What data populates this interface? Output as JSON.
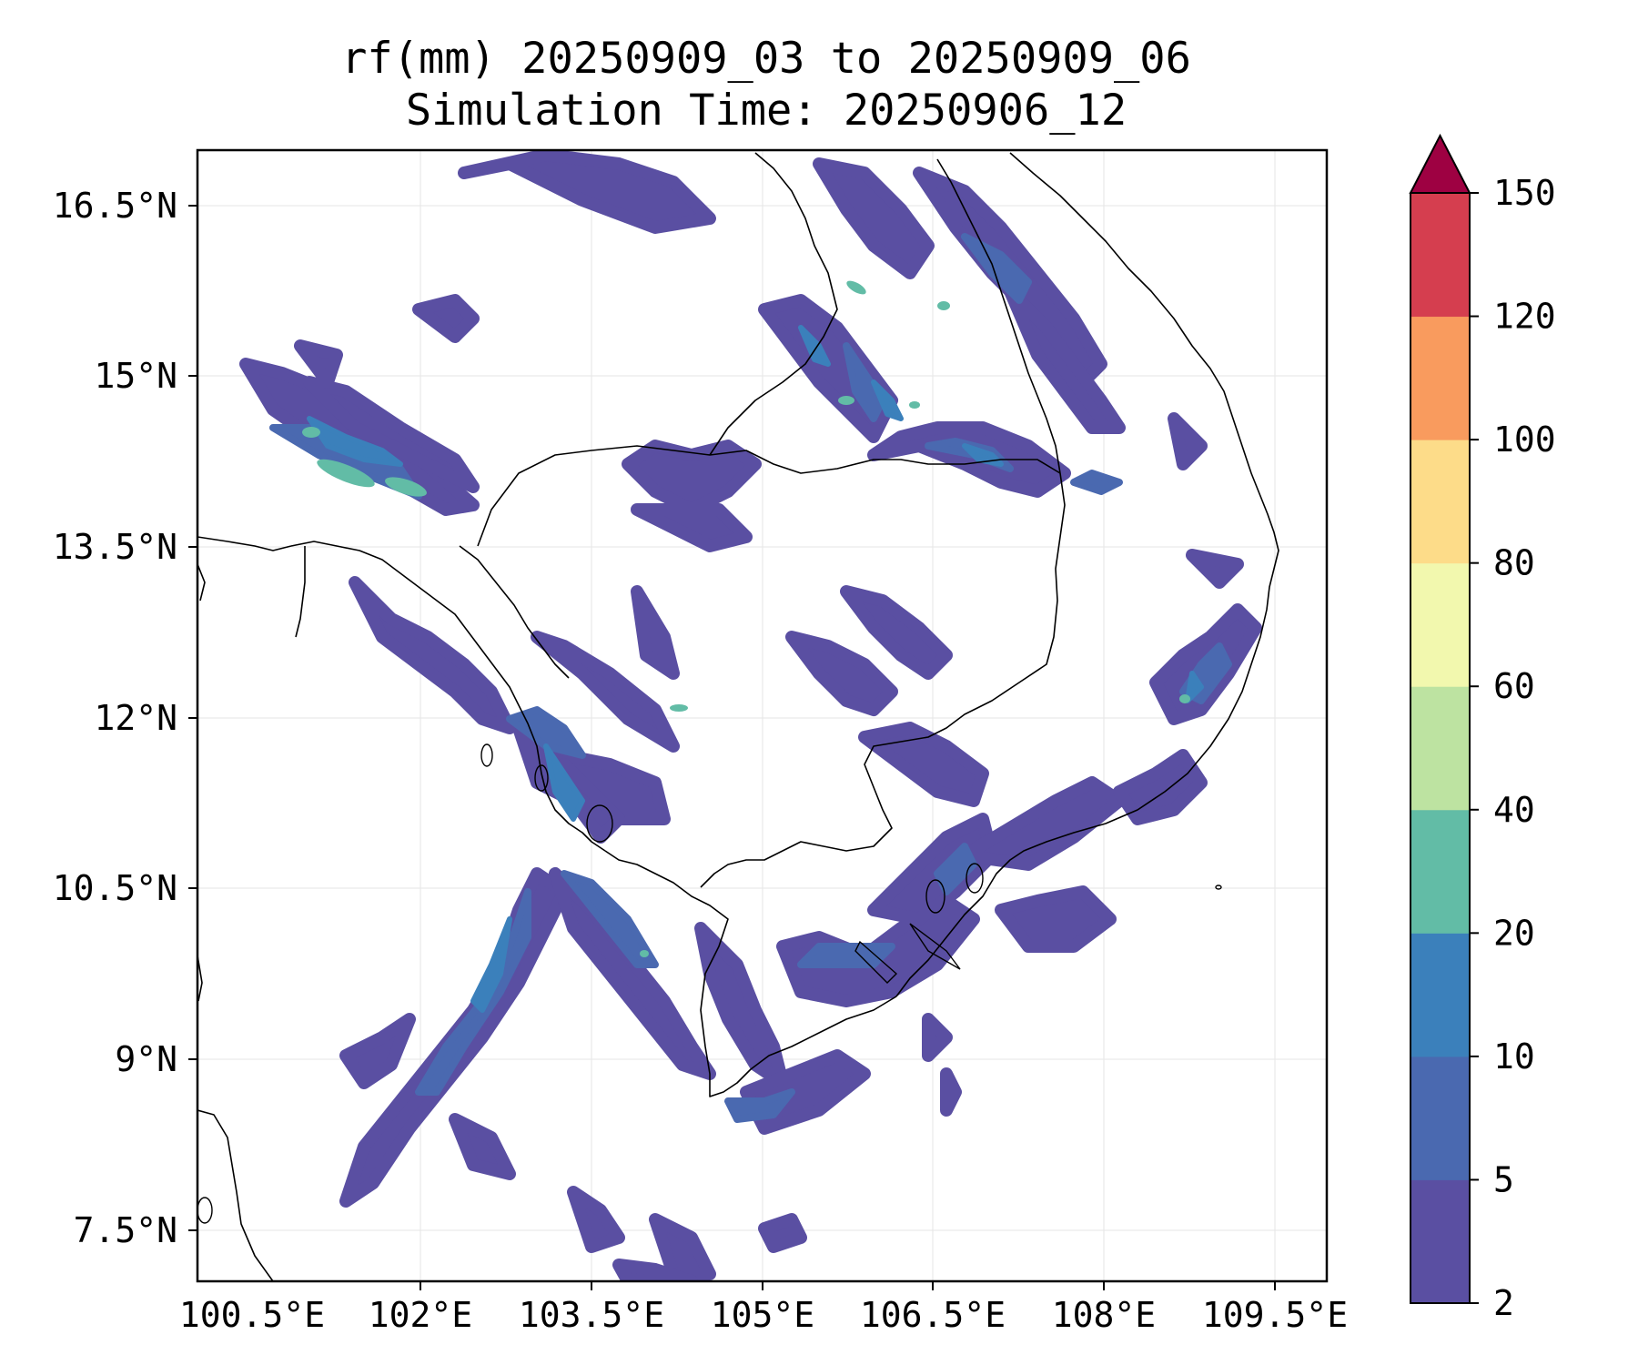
{
  "map": {
    "title_line1": "rf(mm) 20250909_03 to 20250909_06",
    "title_line2": "Simulation Time: 20250906_12",
    "lat_ticks": [
      "16.5°N",
      "15°N",
      "13.5°N",
      "12°N",
      "10.5°N",
      "9°N",
      "7.5°N"
    ],
    "lon_ticks": [
      "100.5°E",
      "102°E",
      "103.5°E",
      "105°E",
      "106.5°E",
      "108°E",
      "109.5°E"
    ],
    "extent": {
      "lon_min": 100.5,
      "lon_max": 110.4,
      "lat_min": 7.2,
      "lat_max": 17.1
    },
    "grid": true,
    "variable": "rf(mm)",
    "palette_name": "Spectral_r"
  },
  "colorbar": {
    "levels": [
      "2",
      "5",
      "10",
      "20",
      "40",
      "60",
      "80",
      "100",
      "120",
      "150"
    ],
    "colors": [
      "#5a4fa2",
      "#4a69b0",
      "#3b80bb",
      "#62bca6",
      "#bde3a1",
      "#f2f8ae",
      "#fddc89",
      "#f99b5e",
      "#d53e4f",
      "#9e0142"
    ],
    "extend": "max"
  }
}
